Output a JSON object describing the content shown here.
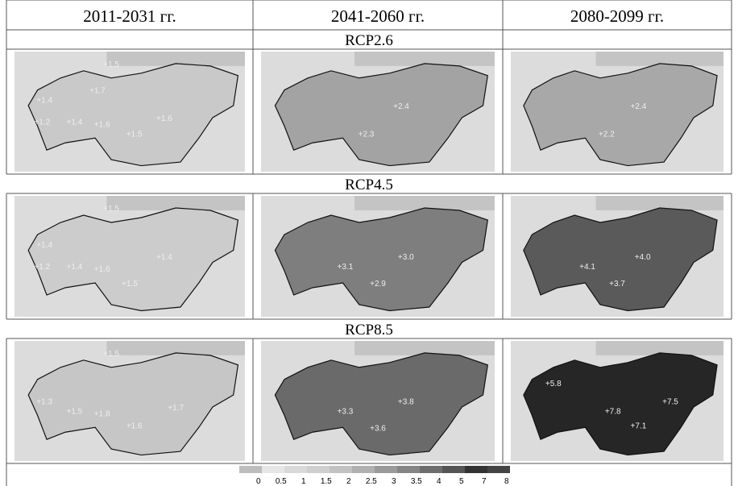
{
  "header": [
    "2011-2031 гг.",
    "2041-2060 гг.",
    "2080-2099 гг."
  ],
  "rows": [
    {
      "title": "RCP2.6",
      "maps": [
        {
          "fill": "#c9c9c9",
          "labels": [
            "+1.5",
            "+1.7",
            "+1.4",
            "+1.2",
            "+1.4",
            "+1.6",
            "+1.5",
            "+1.6"
          ]
        },
        {
          "fill": "#a3a3a3",
          "labels": [
            "+2.4",
            "+2.3"
          ]
        },
        {
          "fill": "#a8a8a8",
          "labels": [
            "+2.4",
            "+2.2"
          ]
        }
      ]
    },
    {
      "title": "RCP4.5",
      "maps": [
        {
          "fill": "#cccccc",
          "labels": [
            "+1.5",
            "+1.4",
            "+1.2",
            "+1.4",
            "+1.6",
            "+1.5",
            "+1.4"
          ]
        },
        {
          "fill": "#7e7e7e",
          "labels": [
            "+3.1",
            "+3.0",
            "+2.9"
          ]
        },
        {
          "fill": "#5a5a5a",
          "labels": [
            "+4.1",
            "+4.0",
            "+3.7"
          ]
        }
      ]
    },
    {
      "title": "RCP8.5",
      "maps": [
        {
          "fill": "#c6c6c6",
          "labels": [
            "+1.5",
            "+1.3",
            "+1.5",
            "+1.8",
            "+1.6",
            "+1.7"
          ]
        },
        {
          "fill": "#6a6a6a",
          "labels": [
            "+3.3",
            "+3.8",
            "+3.6"
          ]
        },
        {
          "fill": "#262626",
          "labels": [
            "+5.8",
            "+7.8",
            "+7.1",
            "+7.5"
          ]
        }
      ]
    }
  ],
  "legend": {
    "colors": [
      "#bdbdbd",
      "#e6e6e6",
      "#d9d9d9",
      "#cfcfcf",
      "#c2c2c2",
      "#b0b0b0",
      "#9a9a9a",
      "#858585",
      "#6e6e6e",
      "#555",
      "#333",
      "#444"
    ],
    "labels": [
      "0",
      "0.5",
      "1",
      "1.5",
      "2",
      "2.5",
      "3",
      "3.5",
      "4",
      "5",
      "7",
      "8"
    ]
  }
}
